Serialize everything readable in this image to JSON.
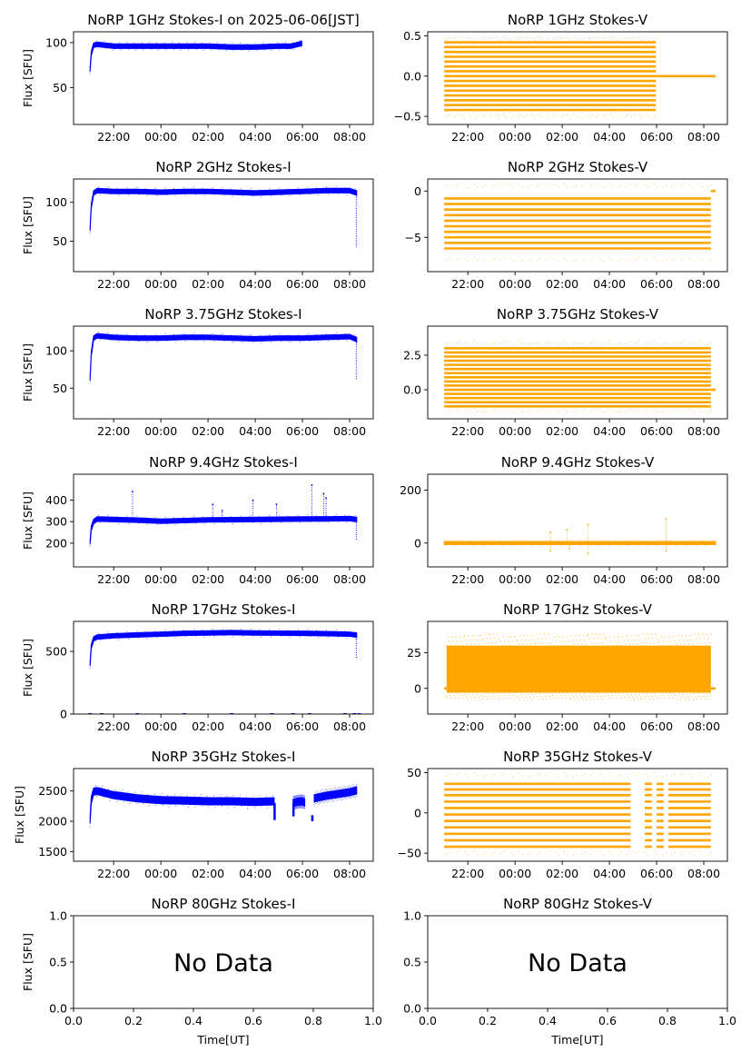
{
  "figure": {
    "xlabel": "Time[UT]",
    "ylabel": "Flux [SFU]",
    "colors": {
      "stokes_i": "#0000ff",
      "stokes_v": "#ffa500"
    }
  },
  "chart_data": [
    {
      "id": "1ghz-i",
      "type": "scatter",
      "title": "NoRP 1GHz Stokes-I on 2025-06-06[JST]",
      "ylabel": "Flux [SFU]",
      "xlabel": "",
      "x_ticks": [
        "22:00",
        "00:00",
        "02:00",
        "04:00",
        "06:00",
        "08:00"
      ],
      "x_range_hours": [
        -3.7,
        9.0
      ],
      "ylim": [
        9,
        112
      ],
      "y_ticks": [
        50,
        100
      ],
      "color": "#0000ff",
      "mode": "band",
      "data_range_hours": [
        -3.0,
        5.97
      ],
      "series": [
        {
          "x": [
            -3.0,
            -2.95,
            -2.85,
            -2.7,
            -2.0,
            -1.0,
            0.0,
            1.0,
            2.0,
            3.0,
            4.0,
            5.0,
            5.5,
            5.97
          ],
          "y": [
            70,
            88,
            97,
            98,
            96,
            96,
            96,
            96,
            96,
            95,
            95,
            96,
            96,
            99
          ]
        }
      ]
    },
    {
      "id": "1ghz-v",
      "type": "scatter",
      "title": "NoRP 1GHz Stokes-V",
      "ylabel": "",
      "xlabel": "",
      "x_ticks": [
        "22:00",
        "00:00",
        "02:00",
        "04:00",
        "06:00",
        "08:00"
      ],
      "x_range_hours": [
        -3.7,
        9.0
      ],
      "ylim": [
        -0.6,
        0.55
      ],
      "y_ticks": [
        -0.5,
        0.0,
        0.5
      ],
      "y_tick_labels": [
        "−0.5",
        "0.0",
        "0.5"
      ],
      "color": "#ffa500",
      "mode": "quantized",
      "data_range_hours": [
        -3.0,
        8.5
      ],
      "levels": [
        -0.42,
        -0.36,
        -0.3,
        -0.24,
        -0.18,
        -0.12,
        -0.06,
        0.0,
        0.06,
        0.12,
        0.18,
        0.24,
        0.3,
        0.36,
        0.42
      ],
      "band_end_hours": 5.97,
      "tail_level": 0.0,
      "outliers": [
        -0.5,
        0.47
      ]
    },
    {
      "id": "2ghz-i",
      "type": "scatter",
      "title": "NoRP 2GHz Stokes-I",
      "ylabel": "Flux [SFU]",
      "xlabel": "",
      "x_ticks": [
        "22:00",
        "00:00",
        "02:00",
        "04:00",
        "06:00",
        "08:00"
      ],
      "x_range_hours": [
        -3.7,
        9.0
      ],
      "ylim": [
        11,
        130
      ],
      "y_ticks": [
        50,
        100
      ],
      "color": "#0000ff",
      "mode": "band",
      "data_range_hours": [
        -3.0,
        8.3
      ],
      "series": [
        {
          "x": [
            -3.0,
            -2.95,
            -2.85,
            -2.7,
            -2.0,
            -1.0,
            0.0,
            1.0,
            2.0,
            3.0,
            4.0,
            5.0,
            6.0,
            7.0,
            8.0,
            8.3
          ],
          "y": [
            66,
            95,
            112,
            115,
            114,
            114,
            113,
            114,
            114,
            113,
            112,
            113,
            114,
            115,
            115,
            112
          ]
        }
      ],
      "dropout": {
        "x": 8.28,
        "y_from": 110,
        "y_to": 42
      }
    },
    {
      "id": "2ghz-v",
      "type": "scatter",
      "title": "NoRP 2GHz Stokes-V",
      "ylabel": "",
      "xlabel": "",
      "x_ticks": [
        "22:00",
        "00:00",
        "02:00",
        "04:00",
        "06:00",
        "08:00"
      ],
      "x_range_hours": [
        -3.7,
        9.0
      ],
      "ylim": [
        -8.7,
        1.3
      ],
      "y_ticks": [
        -5,
        0
      ],
      "y_tick_labels": [
        "−5",
        "0"
      ],
      "color": "#ffa500",
      "mode": "quantized",
      "data_range_hours": [
        -3.0,
        8.5
      ],
      "levels": [
        -6.2,
        -5.6,
        -5.0,
        -4.4,
        -3.8,
        -3.2,
        -2.6,
        -2.0,
        -1.4,
        -0.8
      ],
      "band_end_hours": 8.3,
      "tail_level": 0.0,
      "outliers": [
        -7.4,
        0.6
      ]
    },
    {
      "id": "375ghz-i",
      "type": "scatter",
      "title": "NoRP 3.75GHz Stokes-I",
      "ylabel": "Flux [SFU]",
      "xlabel": "",
      "x_ticks": [
        "22:00",
        "00:00",
        "02:00",
        "04:00",
        "06:00",
        "08:00"
      ],
      "x_range_hours": [
        -3.7,
        9.0
      ],
      "ylim": [
        9,
        133
      ],
      "y_ticks": [
        50,
        100
      ],
      "color": "#0000ff",
      "mode": "band",
      "data_range_hours": [
        -3.0,
        8.3
      ],
      "series": [
        {
          "x": [
            -3.0,
            -2.95,
            -2.85,
            -2.7,
            -2.0,
            -1.0,
            0.0,
            1.0,
            2.0,
            3.0,
            4.0,
            5.0,
            6.0,
            7.0,
            8.0,
            8.3
          ],
          "y": [
            63,
            96,
            117,
            120,
            118,
            117,
            117,
            118,
            118,
            117,
            116,
            117,
            117,
            118,
            119,
            115
          ]
        }
      ],
      "dropout": {
        "x": 8.28,
        "y_from": 115,
        "y_to": 62
      }
    },
    {
      "id": "375ghz-v",
      "type": "scatter",
      "title": "NoRP 3.75GHz Stokes-V",
      "ylabel": "",
      "xlabel": "",
      "x_ticks": [
        "22:00",
        "00:00",
        "02:00",
        "04:00",
        "06:00",
        "08:00"
      ],
      "x_range_hours": [
        -3.7,
        9.0
      ],
      "ylim": [
        -2.1,
        4.6
      ],
      "y_ticks": [
        0.0,
        2.5
      ],
      "y_tick_labels": [
        "0.0",
        "2.5"
      ],
      "color": "#ffa500",
      "mode": "quantized",
      "data_range_hours": [
        -3.0,
        8.5
      ],
      "levels": [
        -1.2,
        -0.9,
        -0.6,
        -0.3,
        0.0,
        0.3,
        0.6,
        0.9,
        1.2,
        1.5,
        1.8,
        2.1,
        2.4,
        2.7,
        3.0
      ],
      "band_end_hours": 8.3,
      "tail_level": 0.0,
      "outliers": [
        -1.5,
        3.4
      ]
    },
    {
      "id": "94ghz-i",
      "type": "scatter",
      "title": "NoRP 9.4GHz Stokes-I",
      "ylabel": "Flux [SFU]",
      "xlabel": "",
      "x_ticks": [
        "22:00",
        "00:00",
        "02:00",
        "04:00",
        "06:00",
        "08:00"
      ],
      "x_range_hours": [
        -3.7,
        9.0
      ],
      "ylim": [
        90,
        520
      ],
      "y_ticks": [
        200,
        300,
        400
      ],
      "color": "#0000ff",
      "mode": "band",
      "data_range_hours": [
        -3.0,
        8.3
      ],
      "series": [
        {
          "x": [
            -3.0,
            -2.95,
            -2.85,
            -2.7,
            -2.0,
            -1.0,
            0.0,
            1.0,
            2.0,
            3.0,
            4.0,
            5.0,
            6.0,
            7.0,
            8.0,
            8.3
          ],
          "y": [
            205,
            270,
            300,
            312,
            310,
            307,
            302,
            305,
            308,
            309,
            310,
            311,
            312,
            313,
            314,
            310
          ]
        }
      ],
      "spikes": [
        {
          "x": -1.2,
          "y": 440
        },
        {
          "x": 2.2,
          "y": 380
        },
        {
          "x": 2.6,
          "y": 350
        },
        {
          "x": 3.9,
          "y": 400
        },
        {
          "x": 4.9,
          "y": 380
        },
        {
          "x": 6.4,
          "y": 470
        },
        {
          "x": 6.9,
          "y": 430
        },
        {
          "x": 7.0,
          "y": 410
        }
      ],
      "dropout": {
        "x": 8.28,
        "y_from": 305,
        "y_to": 215
      }
    },
    {
      "id": "94ghz-v",
      "type": "scatter",
      "title": "NoRP 9.4GHz Stokes-V",
      "ylabel": "",
      "xlabel": "",
      "x_ticks": [
        "22:00",
        "00:00",
        "02:00",
        "04:00",
        "06:00",
        "08:00"
      ],
      "x_range_hours": [
        -3.7,
        9.0
      ],
      "ylim": [
        -90,
        260
      ],
      "y_ticks": [
        0,
        200
      ],
      "y_tick_labels": [
        "0",
        "200"
      ],
      "color": "#ffa500",
      "mode": "band",
      "data_range_hours": [
        -3.0,
        8.5
      ],
      "series": [
        {
          "x": [
            -3.0,
            8.5
          ],
          "y": [
            0,
            0
          ]
        }
      ],
      "half_width": 6,
      "spikes": [
        {
          "x": 1.5,
          "y": 40
        },
        {
          "x": 1.5,
          "y": -30
        },
        {
          "x": 2.2,
          "y": 50
        },
        {
          "x": 2.3,
          "y": -20
        },
        {
          "x": 3.1,
          "y": 70
        },
        {
          "x": 3.1,
          "y": -40
        },
        {
          "x": 6.4,
          "y": 90
        },
        {
          "x": 6.4,
          "y": -30
        }
      ]
    },
    {
      "id": "17ghz-i",
      "type": "scatter",
      "title": "NoRP 17GHz Stokes-I",
      "ylabel": "Flux [SFU]",
      "xlabel": "",
      "x_ticks": [
        "22:00",
        "00:00",
        "02:00",
        "04:00",
        "06:00",
        "08:00"
      ],
      "x_range_hours": [
        -3.7,
        9.0
      ],
      "ylim": [
        0,
        740
      ],
      "y_ticks": [
        0,
        500
      ],
      "color": "#0000ff",
      "mode": "band",
      "data_range_hours": [
        -3.0,
        8.3
      ],
      "series": [
        {
          "x": [
            -3.0,
            -2.95,
            -2.85,
            -2.7,
            -2.0,
            -1.0,
            0.0,
            1.0,
            2.0,
            3.0,
            4.0,
            5.0,
            6.0,
            7.0,
            8.0,
            8.3
          ],
          "y": [
            400,
            540,
            600,
            615,
            625,
            632,
            638,
            645,
            648,
            650,
            648,
            646,
            645,
            642,
            638,
            630
          ]
        }
      ],
      "half_width": 18,
      "zero_marks": [
        -3.0,
        -2.5,
        -1.0,
        1.0,
        3.0,
        4.7,
        5.6,
        6.3,
        7.8,
        8.2,
        8.4
      ],
      "dropout": {
        "x": 8.28,
        "y_from": 620,
        "y_to": 450
      }
    },
    {
      "id": "17ghz-v",
      "type": "scatter",
      "title": "NoRP 17GHz Stokes-V",
      "ylabel": "",
      "xlabel": "",
      "x_ticks": [
        "22:00",
        "00:00",
        "02:00",
        "04:00",
        "06:00",
        "08:00"
      ],
      "x_range_hours": [
        -3.7,
        9.0
      ],
      "ylim": [
        -18,
        47
      ],
      "y_ticks": [
        0,
        25
      ],
      "y_tick_labels": [
        "0",
        "25"
      ],
      "color": "#ffa500",
      "mode": "block",
      "data_range_hours": [
        -3.0,
        8.5
      ],
      "block": {
        "x0": -2.9,
        "x1": 8.3,
        "y0": -3,
        "y1": 30
      },
      "scatter_extent": [
        -8,
        38
      ],
      "tail_level": 0.0
    },
    {
      "id": "35ghz-i",
      "type": "scatter",
      "title": "NoRP 35GHz Stokes-I",
      "ylabel": "Flux [SFU]",
      "xlabel": "",
      "x_ticks": [
        "22:00",
        "00:00",
        "02:00",
        "04:00",
        "06:00",
        "08:00"
      ],
      "x_range_hours": [
        -3.7,
        9.0
      ],
      "ylim": [
        1340,
        2870
      ],
      "y_ticks": [
        1500,
        2000,
        2500
      ],
      "color": "#0000ff",
      "mode": "band",
      "data_range_hours": [
        -3.0,
        8.3
      ],
      "series": [
        {
          "x": [
            -3.0,
            -2.95,
            -2.85,
            -2.7,
            -2.0,
            -1.0,
            0.0,
            1.0,
            2.0,
            3.0,
            4.0,
            4.8
          ],
          "y": [
            2020,
            2350,
            2490,
            2500,
            2430,
            2380,
            2350,
            2340,
            2330,
            2330,
            2320,
            2330
          ]
        },
        {
          "x": [
            5.6,
            5.75,
            6.0,
            6.1
          ],
          "y": [
            2300,
            2320,
            2330,
            2310
          ]
        },
        {
          "x": [
            6.5,
            7.0,
            7.5,
            8.0,
            8.3
          ],
          "y": [
            2380,
            2420,
            2450,
            2480,
            2510
          ]
        }
      ],
      "half_width": 60,
      "markers": [
        {
          "x": 4.82,
          "y_from": 2300,
          "y_to": 2020
        },
        {
          "x": 5.62,
          "y_from": 2300,
          "y_to": 2080
        },
        {
          "x": 6.42,
          "y_from": 2100,
          "y_to": 2000
        }
      ]
    },
    {
      "id": "35ghz-v",
      "type": "scatter",
      "title": "NoRP 35GHz Stokes-V",
      "ylabel": "",
      "xlabel": "",
      "x_ticks": [
        "22:00",
        "00:00",
        "02:00",
        "04:00",
        "06:00",
        "08:00"
      ],
      "x_range_hours": [
        -3.7,
        9.0
      ],
      "ylim": [
        -60,
        55
      ],
      "y_ticks": [
        -50,
        0,
        50
      ],
      "y_tick_labels": [
        "−50",
        "0",
        "50"
      ],
      "color": "#ffa500",
      "mode": "quantized",
      "data_range_hours": [
        -3.0,
        8.5
      ],
      "levels": [
        -42,
        -34,
        -26,
        -18,
        -10,
        -2,
        6,
        14,
        22,
        29,
        36
      ],
      "gaps": [
        [
          4.9,
          5.5
        ],
        [
          5.8,
          6.0
        ],
        [
          6.3,
          6.5
        ]
      ],
      "band_end_hours": 8.3,
      "outliers": [
        -50,
        47
      ]
    },
    {
      "id": "80ghz-i",
      "type": "empty",
      "title": "NoRP 80GHz Stokes-I",
      "ylabel": "Flux [SFU]",
      "xlabel": "Time[UT]",
      "message": "No Data",
      "xlim": [
        0,
        1
      ],
      "ylim": [
        0,
        1
      ],
      "x_ticks": [
        "0.0",
        "0.2",
        "0.4",
        "0.6",
        "0.8",
        "1.0"
      ],
      "y_ticks": [
        "0.0",
        "0.5",
        "1.0"
      ]
    },
    {
      "id": "80ghz-v",
      "type": "empty",
      "title": "NoRP 80GHz Stokes-V",
      "ylabel": "",
      "xlabel": "Time[UT]",
      "message": "No Data",
      "xlim": [
        0,
        1
      ],
      "ylim": [
        0,
        1
      ],
      "x_ticks": [
        "0.0",
        "0.2",
        "0.4",
        "0.6",
        "0.8",
        "1.0"
      ],
      "y_ticks": [
        "0.0",
        "0.5",
        "1.0"
      ]
    }
  ]
}
